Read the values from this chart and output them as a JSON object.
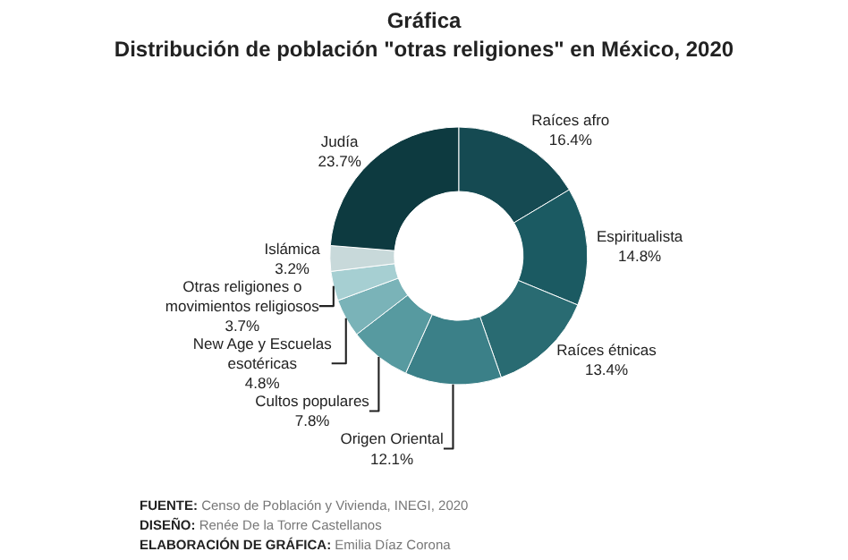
{
  "chart_data": {
    "type": "donut",
    "title": "Gráfica",
    "subtitle": "Distribución de población \"otras religiones\" en México, 2020",
    "categories": [
      "Raíces afro",
      "Espiritualista",
      "Raíces étnicas",
      "Origen Oriental",
      "Cultos populares",
      "New Age y Escuelas esotéricas",
      "Otras religiones o movimientos religiosos",
      "Islámica",
      "Judía"
    ],
    "values": [
      16.4,
      14.8,
      13.4,
      12.1,
      7.8,
      4.8,
      3.7,
      3.2,
      23.7
    ],
    "value_labels": [
      "16.4%",
      "14.8%",
      "13.4%",
      "12.1%",
      "7.8%",
      "4.8%",
      "3.7%",
      "3.2%",
      "23.7%"
    ],
    "colors": [
      "#154a52",
      "#1b5a62",
      "#296b72",
      "#3b8088",
      "#579aa0",
      "#7ab3b8",
      "#a6cfd2",
      "#c8d9da",
      "#0d3a40"
    ],
    "legend": false,
    "annotations": [
      "FUENTE: Censo de Población y Vivienda, INEGI, 2020",
      "DISEÑO: Renée De la Torre Castellanos",
      "ELABORACIÓN DE GRÁFICA: Emilia Díaz Corona"
    ]
  }
}
